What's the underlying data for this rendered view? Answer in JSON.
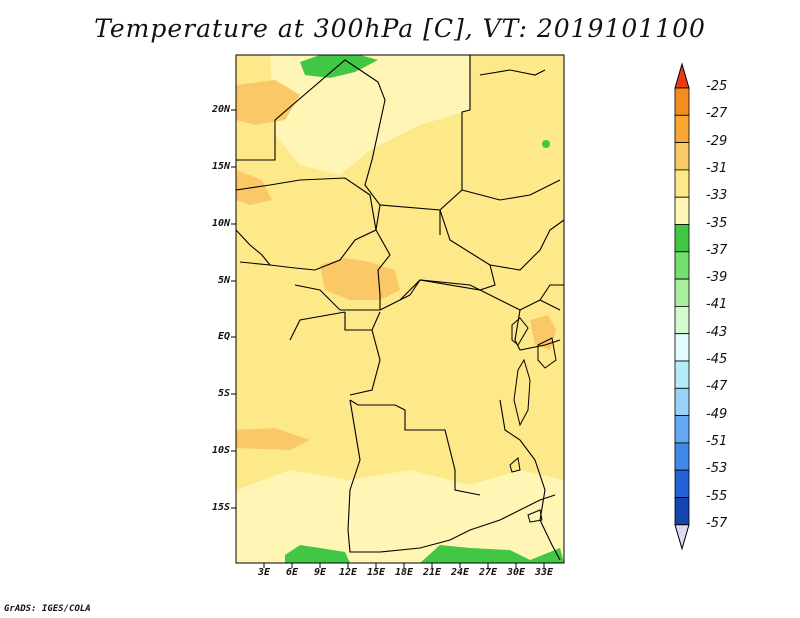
{
  "title": "Temperature at 300hPa [C], VT: 2019101100",
  "credit": "GrADS: IGES/COLA",
  "colors": {
    "level_33_31": "#fde88a",
    "level_35_33": "#fff5b5",
    "level_31_29": "#fac866",
    "level_37_35": "#41c744",
    "boundary": "#000000"
  },
  "map": {
    "latitude_labels": [
      "20N",
      "15N",
      "10N",
      "5N",
      "EQ",
      "5S",
      "10S",
      "15S"
    ],
    "longitude_labels": [
      "3E",
      "6E",
      "9E",
      "12E",
      "15E",
      "18E",
      "21E",
      "24E",
      "27E",
      "30E",
      "33E"
    ]
  },
  "colorbar": {
    "labels": [
      "-25",
      "-27",
      "-29",
      "-31",
      "-33",
      "-35",
      "-37",
      "-39",
      "-41",
      "-43",
      "-45",
      "-47",
      "-49",
      "-51",
      "-53",
      "-55",
      "-57"
    ],
    "colors": [
      "#f0641e",
      "#f58c1e",
      "#faa732",
      "#fac866",
      "#fde88a",
      "#fff5b5",
      "#41c744",
      "#73e06e",
      "#a8f0a0",
      "#d4fbd0",
      "#e0fcfc",
      "#b4ecf8",
      "#96d2fa",
      "#64a9f3",
      "#4187e8",
      "#2264d6",
      "#1446b0",
      "#0a2a8a"
    ],
    "top_arrow_color": "#e63c14",
    "bottom_arrow_color": "#dcdcf8"
  }
}
